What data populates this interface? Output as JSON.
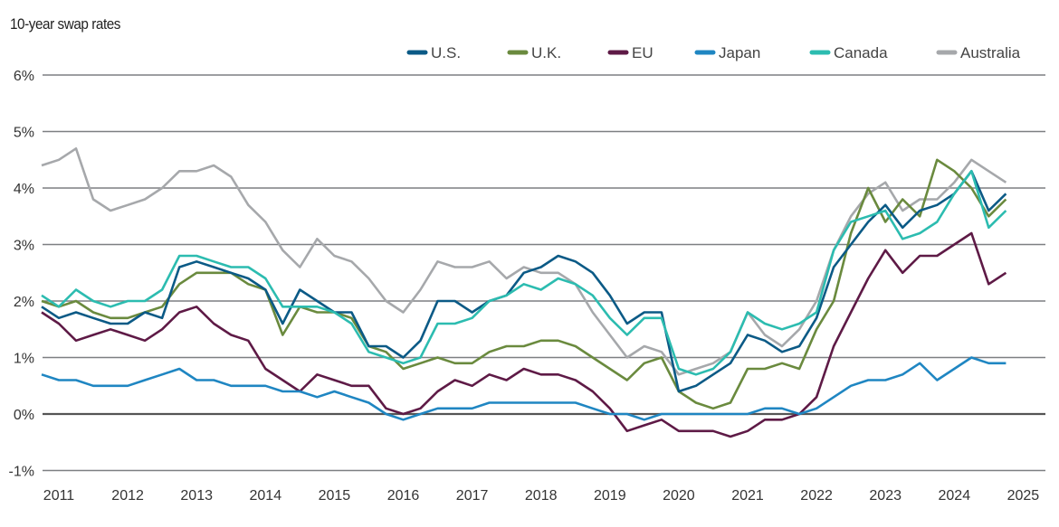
{
  "chart_data": {
    "type": "line",
    "title": "10-year swap rates",
    "xlabel": "",
    "ylabel": "",
    "ylim": [
      -1,
      6
    ],
    "xlim": [
      2010.75,
      2025.0
    ],
    "grid": true,
    "legend_position": "top-right",
    "y_ticks": [
      "6%",
      "5%",
      "4%",
      "3%",
      "2%",
      "1%",
      "0%",
      "-1%"
    ],
    "y_tick_values": [
      6,
      5,
      4,
      3,
      2,
      1,
      0,
      -1
    ],
    "x_ticks": [
      "2011",
      "2012",
      "2013",
      "2014",
      "2015",
      "2016",
      "2017",
      "2018",
      "2019",
      "2020",
      "2021",
      "2022",
      "2023",
      "2024",
      "2025"
    ],
    "x": [
      2010.75,
      2011,
      2011.25,
      2011.5,
      2011.75,
      2012,
      2012.25,
      2012.5,
      2012.75,
      2013,
      2013.25,
      2013.5,
      2013.75,
      2014,
      2014.25,
      2014.5,
      2014.75,
      2015,
      2015.25,
      2015.5,
      2015.75,
      2016,
      2016.25,
      2016.5,
      2016.75,
      2017,
      2017.25,
      2017.5,
      2017.75,
      2018,
      2018.25,
      2018.5,
      2018.75,
      2019,
      2019.25,
      2019.5,
      2019.75,
      2020,
      2020.25,
      2020.5,
      2020.75,
      2021,
      2021.25,
      2021.5,
      2021.75,
      2022,
      2022.25,
      2022.5,
      2022.75,
      2023,
      2023.25,
      2023.5,
      2023.75,
      2024,
      2024.25,
      2024.5,
      2024.75
    ],
    "series": [
      {
        "name": "U.S.",
        "color": "#0b5a86",
        "values": [
          1.9,
          1.7,
          1.8,
          1.7,
          1.6,
          1.6,
          1.8,
          1.7,
          2.6,
          2.7,
          2.6,
          2.5,
          2.4,
          2.2,
          1.6,
          2.2,
          2.0,
          1.8,
          1.8,
          1.2,
          1.2,
          1.0,
          1.3,
          2.0,
          2.0,
          1.8,
          2.0,
          2.1,
          2.5,
          2.6,
          2.8,
          2.7,
          2.5,
          2.1,
          1.6,
          1.8,
          1.8,
          0.4,
          0.5,
          0.7,
          0.9,
          1.4,
          1.3,
          1.1,
          1.2,
          1.7,
          2.6,
          3.0,
          3.4,
          3.7,
          3.3,
          3.6,
          3.7,
          3.9,
          4.3,
          3.6,
          3.9
        ]
      },
      {
        "name": "U.K.",
        "color": "#6a8a3e",
        "values": [
          2.0,
          1.9,
          2.0,
          1.8,
          1.7,
          1.7,
          1.8,
          1.9,
          2.3,
          2.5,
          2.5,
          2.5,
          2.3,
          2.2,
          1.4,
          1.9,
          1.8,
          1.8,
          1.7,
          1.2,
          1.1,
          0.8,
          0.9,
          1.0,
          0.9,
          0.9,
          1.1,
          1.2,
          1.2,
          1.3,
          1.3,
          1.2,
          1.0,
          0.8,
          0.6,
          0.9,
          1.0,
          0.4,
          0.2,
          0.1,
          0.2,
          0.8,
          0.8,
          0.9,
          0.8,
          1.5,
          2.0,
          3.2,
          4.0,
          3.4,
          3.8,
          3.5,
          4.5,
          4.3,
          4.0,
          3.5,
          3.8
        ]
      },
      {
        "name": "EU",
        "color": "#5e1a46",
        "values": [
          1.8,
          1.6,
          1.3,
          1.4,
          1.5,
          1.4,
          1.3,
          1.5,
          1.8,
          1.9,
          1.6,
          1.4,
          1.3,
          0.8,
          0.6,
          0.4,
          0.7,
          0.6,
          0.5,
          0.5,
          0.1,
          0.0,
          0.1,
          0.4,
          0.6,
          0.5,
          0.7,
          0.6,
          0.8,
          0.7,
          0.7,
          0.6,
          0.4,
          0.1,
          -0.3,
          -0.2,
          -0.1,
          -0.3,
          -0.3,
          -0.3,
          -0.4,
          -0.3,
          -0.1,
          -0.1,
          0.0,
          0.3,
          1.2,
          1.8,
          2.4,
          2.9,
          2.5,
          2.8,
          2.8,
          3.0,
          3.2,
          2.3,
          2.5
        ]
      },
      {
        "name": "Japan",
        "color": "#1f86c2",
        "values": [
          0.7,
          0.6,
          0.6,
          0.5,
          0.5,
          0.5,
          0.6,
          0.7,
          0.8,
          0.6,
          0.6,
          0.5,
          0.5,
          0.5,
          0.4,
          0.4,
          0.3,
          0.4,
          0.3,
          0.2,
          0.0,
          -0.1,
          0.0,
          0.1,
          0.1,
          0.1,
          0.2,
          0.2,
          0.2,
          0.2,
          0.2,
          0.2,
          0.1,
          0.0,
          0.0,
          -0.1,
          0.0,
          0.0,
          0.0,
          0.0,
          0.0,
          0.0,
          0.1,
          0.1,
          0.0,
          0.1,
          0.3,
          0.5,
          0.6,
          0.6,
          0.7,
          0.9,
          0.6,
          0.8,
          1.0,
          0.9,
          0.9
        ]
      },
      {
        "name": "Canada",
        "color": "#2cbcb0",
        "values": [
          2.1,
          1.9,
          2.2,
          2.0,
          1.9,
          2.0,
          2.0,
          2.2,
          2.8,
          2.8,
          2.7,
          2.6,
          2.6,
          2.4,
          1.9,
          1.9,
          1.9,
          1.8,
          1.6,
          1.1,
          1.0,
          0.9,
          1.0,
          1.6,
          1.6,
          1.7,
          2.0,
          2.1,
          2.3,
          2.2,
          2.4,
          2.3,
          2.1,
          1.7,
          1.4,
          1.7,
          1.7,
          0.8,
          0.7,
          0.8,
          1.1,
          1.8,
          1.6,
          1.5,
          1.6,
          1.8,
          2.9,
          3.4,
          3.5,
          3.6,
          3.1,
          3.2,
          3.4,
          3.9,
          4.3,
          3.3,
          3.6
        ]
      },
      {
        "name": "Australia",
        "color": "#a6a8ab",
        "values": [
          4.4,
          4.5,
          4.7,
          3.8,
          3.6,
          3.7,
          3.8,
          4.0,
          4.3,
          4.3,
          4.4,
          4.2,
          3.7,
          3.4,
          2.9,
          2.6,
          3.1,
          2.8,
          2.7,
          2.4,
          2.0,
          1.8,
          2.2,
          2.7,
          2.6,
          2.6,
          2.7,
          2.4,
          2.6,
          2.5,
          2.5,
          2.3,
          1.8,
          1.4,
          1.0,
          1.2,
          1.1,
          0.7,
          0.8,
          0.9,
          1.1,
          1.8,
          1.4,
          1.2,
          1.5,
          2.0,
          2.9,
          3.5,
          3.9,
          4.1,
          3.6,
          3.8,
          3.8,
          4.1,
          4.5,
          4.3,
          4.1
        ]
      }
    ]
  }
}
